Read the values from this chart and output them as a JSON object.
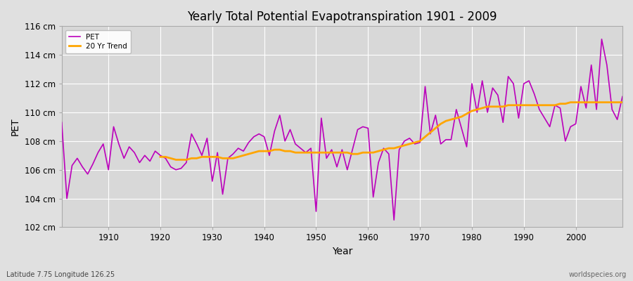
{
  "title": "Yearly Total Potential Evapotranspiration 1901 - 2009",
  "xlabel": "Year",
  "ylabel": "PET",
  "subtitle": "Latitude 7.75 Longitude 126.25",
  "watermark": "worldspecies.org",
  "ylim": [
    102,
    116
  ],
  "ytick_labels": [
    "102 cm",
    "104 cm",
    "106 cm",
    "108 cm",
    "110 cm",
    "112 cm",
    "114 cm",
    "116 cm"
  ],
  "ytick_values": [
    102,
    104,
    106,
    108,
    110,
    112,
    114,
    116
  ],
  "xlim": [
    1901,
    2009
  ],
  "xtick_values": [
    1910,
    1920,
    1930,
    1940,
    1950,
    1960,
    1970,
    1980,
    1990,
    2000
  ],
  "pet_color": "#BB00BB",
  "trend_color": "#FFA500",
  "fig_bg_color": "#E0E0E0",
  "plot_bg_color": "#D8D8D8",
  "grid_color": "#FFFFFF",
  "years": [
    1901,
    1902,
    1903,
    1904,
    1905,
    1906,
    1907,
    1908,
    1909,
    1910,
    1911,
    1912,
    1913,
    1914,
    1915,
    1916,
    1917,
    1918,
    1919,
    1920,
    1921,
    1922,
    1923,
    1924,
    1925,
    1926,
    1927,
    1928,
    1929,
    1930,
    1931,
    1932,
    1933,
    1934,
    1935,
    1936,
    1937,
    1938,
    1939,
    1940,
    1941,
    1942,
    1943,
    1944,
    1945,
    1946,
    1947,
    1948,
    1949,
    1950,
    1951,
    1952,
    1953,
    1954,
    1955,
    1956,
    1957,
    1958,
    1959,
    1960,
    1961,
    1962,
    1963,
    1964,
    1965,
    1966,
    1967,
    1968,
    1969,
    1970,
    1971,
    1972,
    1973,
    1974,
    1975,
    1976,
    1977,
    1978,
    1979,
    1980,
    1981,
    1982,
    1983,
    1984,
    1985,
    1986,
    1987,
    1988,
    1989,
    1990,
    1991,
    1992,
    1993,
    1994,
    1995,
    1996,
    1997,
    1998,
    1999,
    2000,
    2001,
    2002,
    2003,
    2004,
    2005,
    2006,
    2007,
    2008,
    2009
  ],
  "pet": [
    109.3,
    104.0,
    106.3,
    106.8,
    106.2,
    105.7,
    106.4,
    107.2,
    107.8,
    106.0,
    109.0,
    107.8,
    106.8,
    107.6,
    107.2,
    106.5,
    107.0,
    106.6,
    107.3,
    107.0,
    106.8,
    106.2,
    106.0,
    106.1,
    106.5,
    108.5,
    107.8,
    107.0,
    108.2,
    105.2,
    107.2,
    104.3,
    106.8,
    107.1,
    107.5,
    107.3,
    107.9,
    108.3,
    108.5,
    108.3,
    107.0,
    108.7,
    109.8,
    108.0,
    108.8,
    107.8,
    107.5,
    107.2,
    107.5,
    103.1,
    109.6,
    106.8,
    107.4,
    106.2,
    107.4,
    106.0,
    107.4,
    108.8,
    109.0,
    108.9,
    104.1,
    106.5,
    107.5,
    107.1,
    102.5,
    107.4,
    108.0,
    108.2,
    107.8,
    107.9,
    111.8,
    108.5,
    109.8,
    107.8,
    108.1,
    108.1,
    110.2,
    108.9,
    107.6,
    112.0,
    110.0,
    112.2,
    110.0,
    111.7,
    111.2,
    109.3,
    112.5,
    112.0,
    109.6,
    112.0,
    112.2,
    111.3,
    110.2,
    109.6,
    109.0,
    110.5,
    110.3,
    108.0,
    109.0,
    109.2,
    111.8,
    110.3,
    113.3,
    110.2,
    115.1,
    113.3,
    110.2,
    109.5,
    111.1
  ],
  "trend": [
    null,
    null,
    null,
    null,
    null,
    null,
    null,
    null,
    null,
    null,
    null,
    null,
    null,
    null,
    null,
    null,
    null,
    null,
    null,
    106.9,
    106.9,
    106.8,
    106.7,
    106.7,
    106.7,
    106.8,
    106.8,
    106.9,
    106.9,
    106.9,
    106.9,
    106.8,
    106.8,
    106.8,
    106.9,
    107.0,
    107.1,
    107.2,
    107.3,
    107.3,
    107.3,
    107.4,
    107.4,
    107.3,
    107.3,
    107.2,
    107.2,
    107.2,
    107.2,
    107.2,
    107.2,
    107.2,
    107.2,
    107.2,
    107.2,
    107.2,
    107.1,
    107.1,
    107.2,
    107.2,
    107.2,
    107.3,
    107.4,
    107.5,
    107.5,
    107.6,
    107.7,
    107.8,
    107.9,
    108.0,
    108.3,
    108.6,
    108.9,
    109.2,
    109.4,
    109.5,
    109.6,
    109.7,
    109.9,
    110.1,
    110.2,
    110.3,
    110.4,
    110.4,
    110.4,
    110.4,
    110.5,
    110.5,
    110.5,
    110.5,
    110.5,
    110.5,
    110.5,
    110.5,
    110.5,
    110.5,
    110.6,
    110.6,
    110.7,
    110.7,
    110.7,
    110.7,
    110.7,
    110.7,
    110.7,
    110.7,
    110.7,
    110.7,
    110.7
  ]
}
